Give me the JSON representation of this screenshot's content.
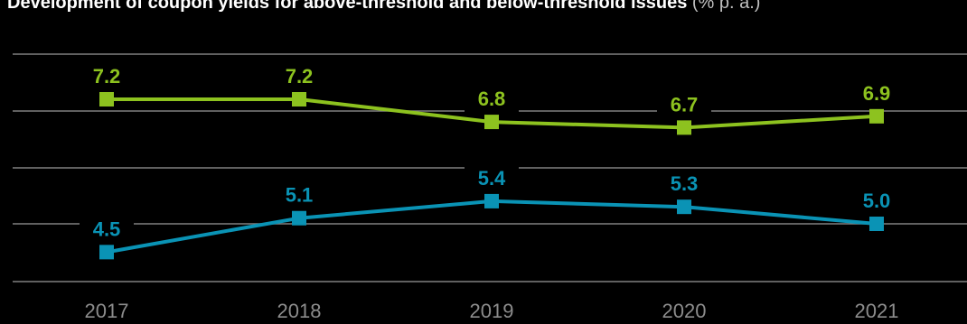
{
  "title": {
    "text": "Development of coupon yields for above-threshold and below-threshold issues",
    "unit": "(% p. a.)"
  },
  "chart_data": {
    "type": "line",
    "title": "Development of coupon yields for above-threshold and below-threshold issues",
    "unit": "(% p. a.)",
    "x": [
      "2017",
      "2018",
      "2019",
      "2020",
      "2021"
    ],
    "grid": true,
    "series": [
      {
        "values": [
          7.2,
          7.2,
          6.8,
          6.7,
          6.9
        ],
        "labels": [
          "7.2",
          "7.2",
          "6.8",
          "6.7",
          "6.9"
        ],
        "color": "#8dc21f"
      },
      {
        "values": [
          4.5,
          5.1,
          5.4,
          5.3,
          5.0
        ],
        "labels": [
          "4.5",
          "5.1",
          "5.4",
          "5.3",
          "5.0"
        ],
        "color": "#0a93b5"
      }
    ]
  },
  "colors": {
    "background": "#000000",
    "gridline": "#808080",
    "tick_label": "#8c8c8c"
  }
}
